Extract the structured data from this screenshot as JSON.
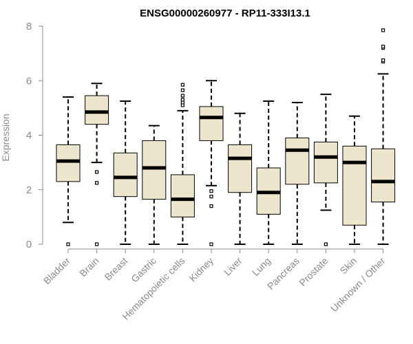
{
  "chart_data": {
    "type": "boxplot",
    "title": "ENSG00000260977 - RP11-333I13.1",
    "xlabel": "",
    "ylabel": "Expression",
    "ylim": [
      0,
      8
    ],
    "yticks": [
      0,
      2,
      4,
      6,
      8
    ],
    "colors": {
      "box_fill": "#ede6cc",
      "box_stroke": "#000000",
      "median": "#000000",
      "axis": "#8a8a8a",
      "tick_text": "#8a8a8a"
    },
    "categories": [
      "Bladder",
      "Brain",
      "Breast",
      "Gastric",
      "Hematopoietic cells",
      "Kidney",
      "Liver",
      "Lung",
      "Pancreas",
      "Prostate",
      "Skin",
      "Unknown / Other"
    ],
    "boxes": [
      {
        "name": "Bladder",
        "whisker_low": 0.8,
        "q1": 2.3,
        "median": 3.05,
        "q3": 3.65,
        "whisker_high": 5.4,
        "outliers": [
          0.0
        ]
      },
      {
        "name": "Brain",
        "whisker_low": 3.0,
        "q1": 4.4,
        "median": 4.85,
        "q3": 5.45,
        "whisker_high": 5.9,
        "outliers": [
          2.65,
          2.25,
          0.0
        ]
      },
      {
        "name": "Breast",
        "whisker_low": 0.0,
        "q1": 1.75,
        "median": 2.45,
        "q3": 3.35,
        "whisker_high": 5.25,
        "outliers": []
      },
      {
        "name": "Gastric",
        "whisker_low": 0.0,
        "q1": 1.65,
        "median": 2.8,
        "q3": 3.8,
        "whisker_high": 4.35,
        "outliers": []
      },
      {
        "name": "Hematopoietic cells",
        "whisker_low": 0.0,
        "q1": 1.0,
        "median": 1.65,
        "q3": 2.55,
        "whisker_high": 4.9,
        "outliers": [
          5.1,
          5.2,
          5.3,
          5.45,
          5.65,
          5.85
        ]
      },
      {
        "name": "Kidney",
        "whisker_low": 2.15,
        "q1": 3.8,
        "median": 4.65,
        "q3": 5.05,
        "whisker_high": 6.0,
        "outliers": [
          1.95,
          1.75,
          1.4,
          0.0
        ]
      },
      {
        "name": "Liver",
        "whisker_low": 0.0,
        "q1": 1.9,
        "median": 3.15,
        "q3": 3.65,
        "whisker_high": 4.8,
        "outliers": []
      },
      {
        "name": "Lung",
        "whisker_low": 0.0,
        "q1": 1.1,
        "median": 1.9,
        "q3": 2.8,
        "whisker_high": 5.25,
        "outliers": []
      },
      {
        "name": "Pancreas",
        "whisker_low": 0.0,
        "q1": 2.2,
        "median": 3.45,
        "q3": 3.9,
        "whisker_high": 5.2,
        "outliers": []
      },
      {
        "name": "Prostate",
        "whisker_low": 1.25,
        "q1": 2.25,
        "median": 3.2,
        "q3": 3.75,
        "whisker_high": 5.5,
        "outliers": [
          0.0
        ]
      },
      {
        "name": "Skin",
        "whisker_low": 0.0,
        "q1": 0.7,
        "median": 3.0,
        "q3": 3.6,
        "whisker_high": 4.7,
        "outliers": []
      },
      {
        "name": "Unknown / Other",
        "whisker_low": 0.0,
        "q1": 1.55,
        "median": 2.3,
        "q3": 3.5,
        "whisker_high": 6.25,
        "outliers": [
          6.7,
          6.75,
          7.2,
          7.25,
          7.85
        ]
      }
    ]
  }
}
